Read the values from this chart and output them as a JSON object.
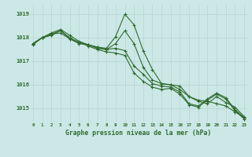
{
  "title": "Graphe pression niveau de la mer (hPa)",
  "background_color": "#cce8e6",
  "grid_color": "#aad4d0",
  "line_color": "#2d6a2d",
  "x_ticks": [
    0,
    1,
    2,
    3,
    4,
    5,
    6,
    7,
    8,
    9,
    10,
    11,
    12,
    13,
    14,
    15,
    16,
    17,
    18,
    19,
    20,
    21,
    22,
    23
  ],
  "y_ticks": [
    1015,
    1016,
    1017,
    1018,
    1019
  ],
  "ylim": [
    1014.4,
    1019.4
  ],
  "xlim": [
    -0.3,
    23.3
  ],
  "series": [
    [
      1017.75,
      1018.0,
      1018.1,
      1018.3,
      1017.95,
      1017.75,
      1017.7,
      1017.6,
      1017.55,
      1018.05,
      1019.0,
      1018.55,
      1017.45,
      1016.65,
      1016.05,
      1016.0,
      1015.95,
      1015.5,
      1015.35,
      1015.3,
      1015.2,
      1015.1,
      1014.85,
      1014.6
    ],
    [
      1017.75,
      1018.0,
      1018.15,
      1018.3,
      1018.0,
      1017.8,
      1017.7,
      1017.6,
      1017.5,
      1017.75,
      1018.3,
      1017.75,
      1016.75,
      1016.2,
      1016.05,
      1016.0,
      1015.8,
      1015.5,
      1015.3,
      1015.2,
      1015.5,
      1015.25,
      1015.05,
      1014.65
    ],
    [
      1017.75,
      1018.0,
      1018.2,
      1018.35,
      1018.1,
      1017.85,
      1017.7,
      1017.55,
      1017.5,
      1017.55,
      1017.45,
      1016.8,
      1016.45,
      1016.05,
      1015.95,
      1015.9,
      1015.7,
      1015.2,
      1015.1,
      1015.4,
      1015.65,
      1015.45,
      1014.95,
      1014.6
    ],
    [
      1017.7,
      1018.0,
      1018.15,
      1018.2,
      1017.95,
      1017.8,
      1017.65,
      1017.5,
      1017.4,
      1017.35,
      1017.25,
      1016.5,
      1016.15,
      1015.9,
      1015.8,
      1015.85,
      1015.6,
      1015.15,
      1015.05,
      1015.35,
      1015.6,
      1015.4,
      1014.9,
      1014.55
    ]
  ]
}
